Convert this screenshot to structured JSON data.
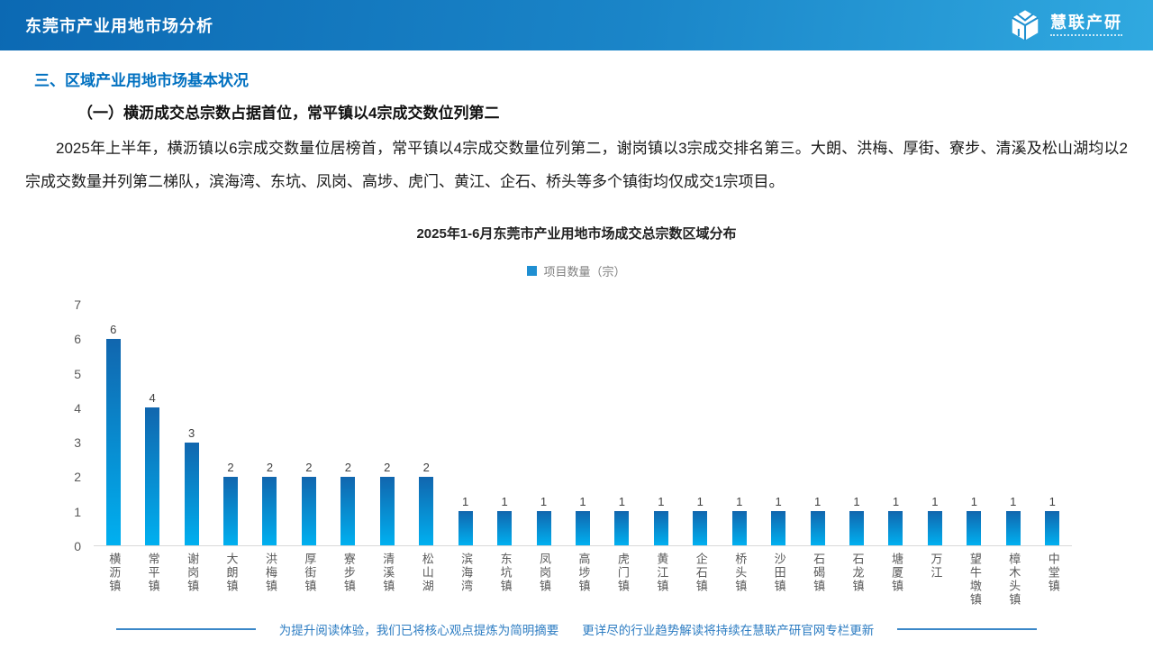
{
  "header": {
    "title": "东莞市产业用地市场分析",
    "logo_text": "慧联产研"
  },
  "section": {
    "title": "三、区域产业用地市场基本状况",
    "subtitle": "（一）横沥成交总宗数占据首位，常平镇以4宗成交数位列第二",
    "body": "2025年上半年，横沥镇以6宗成交数量位居榜首，常平镇以4宗成交数量位列第二，谢岗镇以3宗成交排名第三。大朗、洪梅、厚街、寮步、清溪及松山湖均以2宗成交数量并列第二梯队，滨海湾、东坑、凤岗、高埗、虎门、黄江、企石、桥头等多个镇街均仅成交1宗项目。"
  },
  "chart_data": {
    "type": "bar",
    "title": "2025年1-6月东莞市产业用地市场成交总宗数区域分布",
    "legend": "项目数量（宗）",
    "legend_position": "top",
    "categories": [
      "横沥镇",
      "常平镇",
      "谢岗镇",
      "大朗镇",
      "洪梅镇",
      "厚街镇",
      "寮步镇",
      "清溪镇",
      "松山湖",
      "滨海湾",
      "东坑镇",
      "凤岗镇",
      "高埗镇",
      "虎门镇",
      "黄江镇",
      "企石镇",
      "桥头镇",
      "沙田镇",
      "石碣镇",
      "石龙镇",
      "塘厦镇",
      "万江",
      "望牛墩镇",
      "樟木头镇",
      "中堂镇"
    ],
    "values": [
      6,
      4,
      3,
      2,
      2,
      2,
      2,
      2,
      2,
      1,
      1,
      1,
      1,
      1,
      1,
      1,
      1,
      1,
      1,
      1,
      1,
      1,
      1,
      1,
      1
    ],
    "ylim": [
      0,
      7
    ],
    "yticks": [
      0,
      1,
      2,
      3,
      4,
      5,
      6,
      7
    ],
    "grid": false,
    "bar_color_top": "#1166ae",
    "bar_color_bottom": "#00b0f0",
    "legend_color": "#1f8fd2",
    "axis_line_color": "#d9d9d9"
  },
  "footer": {
    "left_note": "为提升阅读体验，我们已将核心观点提炼为简明摘要",
    "right_note": "更详尽的行业趋势解读将持续在慧联产研官网专栏更新"
  },
  "colors": {
    "header_gradient_start": "#0c69b3",
    "header_gradient_end": "#30a9e0",
    "section_title_blue": "#0070c0",
    "footer_blue": "#2c7cc2"
  }
}
